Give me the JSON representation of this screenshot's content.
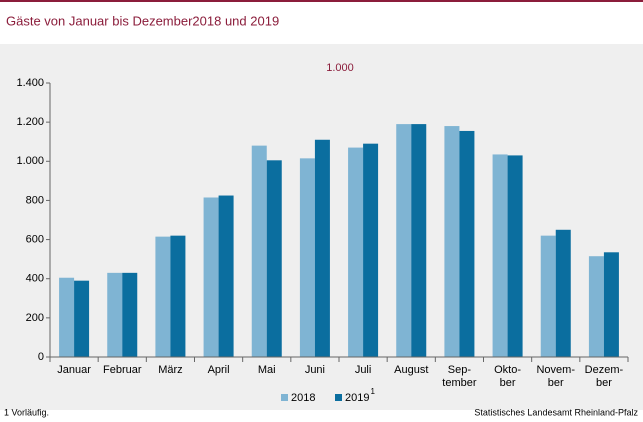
{
  "chart_data": {
    "type": "bar",
    "title": "Gäste von Januar bis Dezember2018 und 2019",
    "unit_label": "1.000",
    "categories": [
      "Januar",
      "Februar",
      "März",
      "April",
      "Mai",
      "Juni",
      "Juli",
      "August",
      [
        "Sep-",
        "tember"
      ],
      [
        "Okto-",
        "ber"
      ],
      [
        "Novem-",
        "ber"
      ],
      [
        "Dezem-",
        "ber"
      ]
    ],
    "series": [
      {
        "name": "2018",
        "color": "#7fb4d3",
        "values": [
          405,
          430,
          615,
          815,
          1080,
          1015,
          1070,
          1190,
          1180,
          1035,
          620,
          515
        ]
      },
      {
        "name": "2019",
        "superscript": "1",
        "color": "#0b6e9f",
        "values": [
          390,
          430,
          620,
          825,
          1005,
          1110,
          1090,
          1190,
          1155,
          1030,
          650,
          535
        ]
      }
    ],
    "ylim": [
      0,
      1400
    ],
    "yticks": [
      0,
      200,
      400,
      600,
      800,
      {
        "value": 1000,
        "label": "1.000"
      },
      {
        "value": 1200,
        "label": "1.200"
      },
      {
        "value": 1400,
        "label": "1.400"
      }
    ],
    "grid": false,
    "footnote": "1 Vorläufig.",
    "source": "Statistisches Landesamt Rheinland-Pfalz"
  }
}
